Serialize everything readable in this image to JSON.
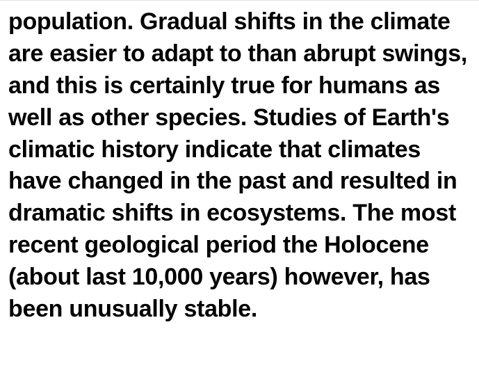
{
  "paragraph": {
    "text": "population. Gradual shifts in the climate are easier to adapt to than abrupt swings, and this is certainly true for humans as well as other species. Studies of Earth's climatic history indicate that climates have changed in the past and resulted in dramatic shifts in ecosystems. The most recent geological period the Holocene (about last 10,000 years) however, has been unusually stable.",
    "font_size": 34,
    "font_weight": 700,
    "color": "#000000",
    "background_color": "#ffffff",
    "line_height": 1.35
  }
}
